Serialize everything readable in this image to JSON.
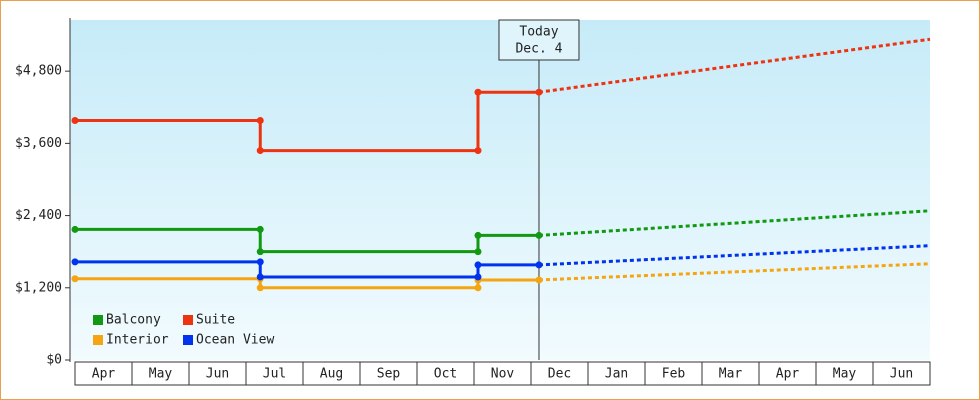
{
  "chart_data": {
    "type": "line",
    "step": true,
    "categories": [
      "Apr",
      "May",
      "Jun",
      "Jul",
      "Aug",
      "Sep",
      "Oct",
      "Nov",
      "Dec",
      "Jan",
      "Feb",
      "Mar",
      "Apr",
      "May",
      "Jun"
    ],
    "xlim": [
      0,
      15
    ],
    "ylim": [
      0,
      5650
    ],
    "yticks": [
      {
        "value": 0,
        "label": "$0"
      },
      {
        "value": 1200,
        "label": "$1,200"
      },
      {
        "value": 2400,
        "label": "$2,400"
      },
      {
        "value": 3600,
        "label": "$3,600"
      },
      {
        "value": 4800,
        "label": "$4,800"
      }
    ],
    "annotation": {
      "x": 8.14,
      "lines": [
        "Today",
        "Dec. 4"
      ]
    },
    "legend": "bottom-left",
    "series": [
      {
        "name": "Balcony",
        "color": "#119911",
        "x": [
          0,
          3.25,
          3.25,
          7.07,
          7.07,
          8.14
        ],
        "values": [
          2170,
          2170,
          1800,
          1800,
          2070,
          2070
        ],
        "projection": {
          "x": [
            8.14,
            15
          ],
          "values": [
            2070,
            2480
          ]
        }
      },
      {
        "name": "Suite",
        "color": "#ee3311",
        "x": [
          0,
          3.25,
          3.25,
          7.07,
          7.07,
          8.14
        ],
        "values": [
          3980,
          3980,
          3480,
          3480,
          4450,
          4450
        ],
        "projection": {
          "x": [
            8.14,
            15
          ],
          "values": [
            4450,
            5330
          ]
        }
      },
      {
        "name": "Interior",
        "color": "#f5a511",
        "x": [
          0,
          3.25,
          3.25,
          7.07,
          7.07,
          8.14
        ],
        "values": [
          1350,
          1350,
          1200,
          1200,
          1330,
          1330
        ],
        "projection": {
          "x": [
            8.14,
            15
          ],
          "values": [
            1330,
            1600
          ]
        }
      },
      {
        "name": "Ocean View",
        "color": "#0033ee",
        "x": [
          0,
          3.25,
          3.25,
          7.07,
          7.07,
          8.14
        ],
        "values": [
          1630,
          1630,
          1380,
          1380,
          1580,
          1580
        ],
        "projection": {
          "x": [
            8.14,
            15
          ],
          "values": [
            1580,
            1900
          ]
        }
      }
    ]
  }
}
